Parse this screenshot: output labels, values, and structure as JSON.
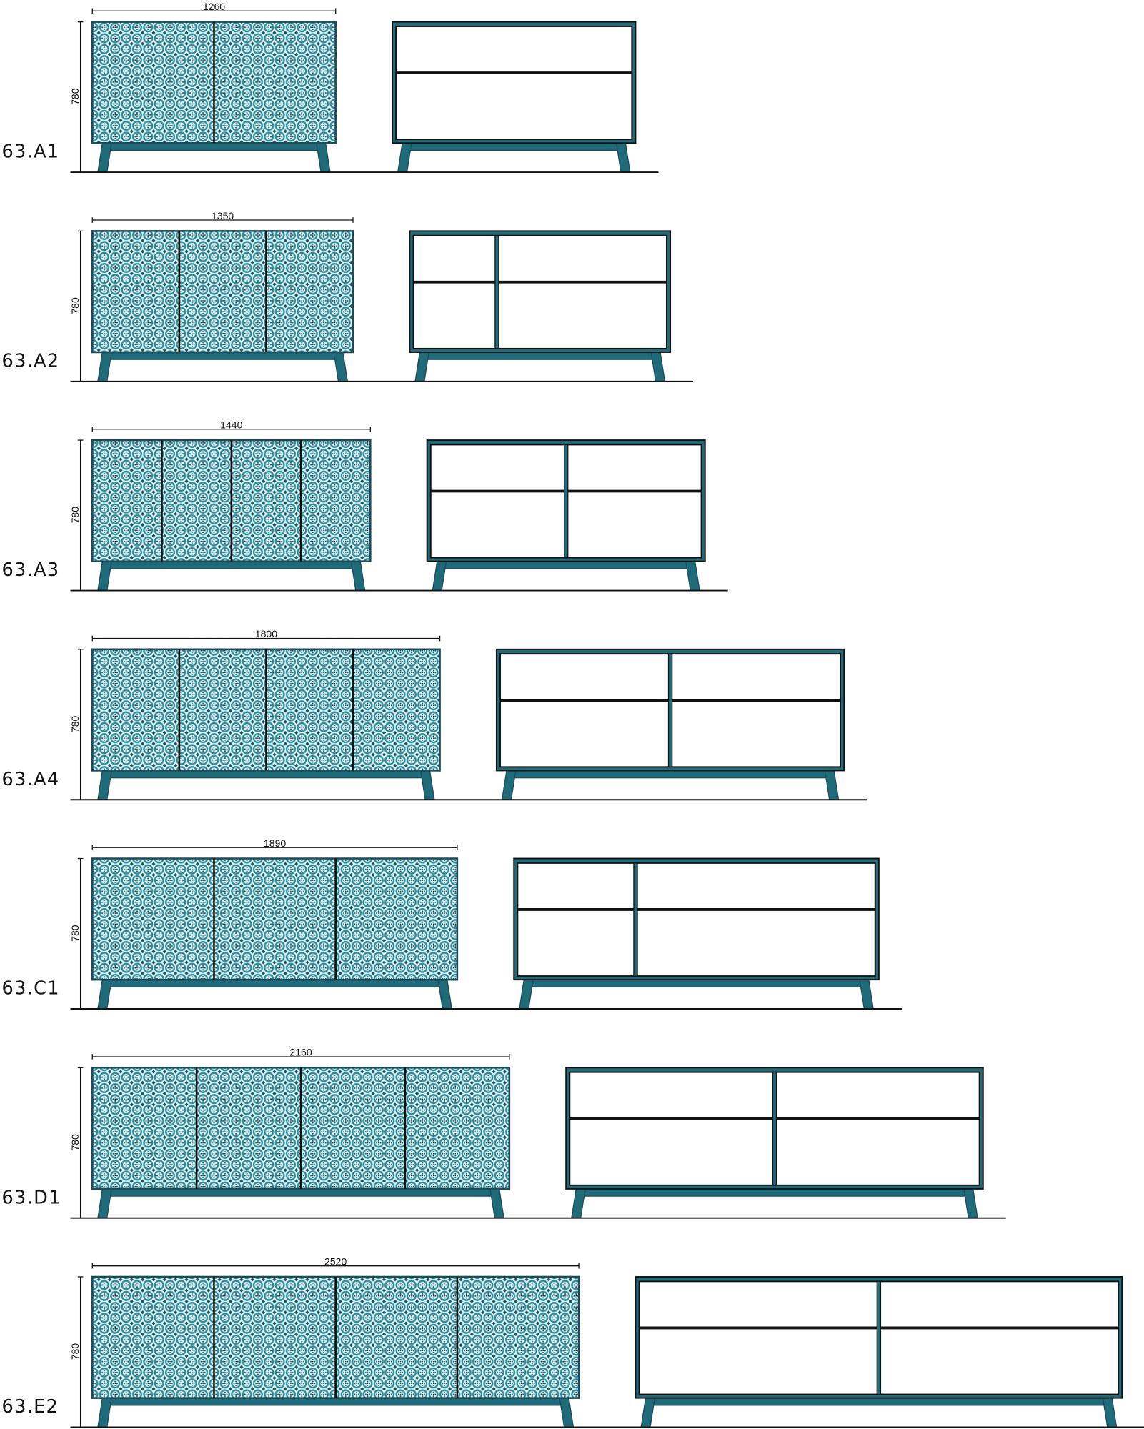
{
  "colors": {
    "frame": "#1d4b58",
    "teal": "#1f6b7a",
    "pattern_light": "#dcf3f6",
    "pattern_ring": "#2b8999",
    "pattern_dark": "#1b4f5c",
    "line": "#111111"
  },
  "models": [
    {
      "code": "63.A1",
      "width_label": "1260",
      "height_label": "780",
      "width_mm": 1260,
      "doors": 2,
      "interior_divider": 0.5,
      "interior_columns": 1
    },
    {
      "code": "63.A2",
      "width_label": "1350",
      "height_label": "780",
      "width_mm": 1350,
      "doors": 3,
      "interior_divider": 0.33,
      "interior_columns": 2
    },
    {
      "code": "63.A3",
      "width_label": "1440",
      "height_label": "780",
      "width_mm": 1440,
      "doors": 4,
      "interior_divider": 0.5,
      "interior_columns": 2
    },
    {
      "code": "63.A4",
      "width_label": "1800",
      "height_label": "780",
      "width_mm": 1800,
      "doors": 4,
      "interior_divider": 0.5,
      "interior_columns": 2
    },
    {
      "code": "63.C1",
      "width_label": "1890",
      "height_label": "780",
      "width_mm": 1890,
      "doors": 3,
      "interior_divider": 0.33,
      "interior_columns": 2
    },
    {
      "code": "63.D1",
      "width_label": "2160",
      "height_label": "780",
      "width_mm": 2160,
      "doors": 4,
      "interior_divider": 0.5,
      "interior_columns": 2
    },
    {
      "code": "63.E2",
      "width_label": "2520",
      "height_label": "780",
      "width_mm": 2520,
      "doors": 4,
      "interior_divider": 0.5,
      "interior_columns": 2
    }
  ]
}
